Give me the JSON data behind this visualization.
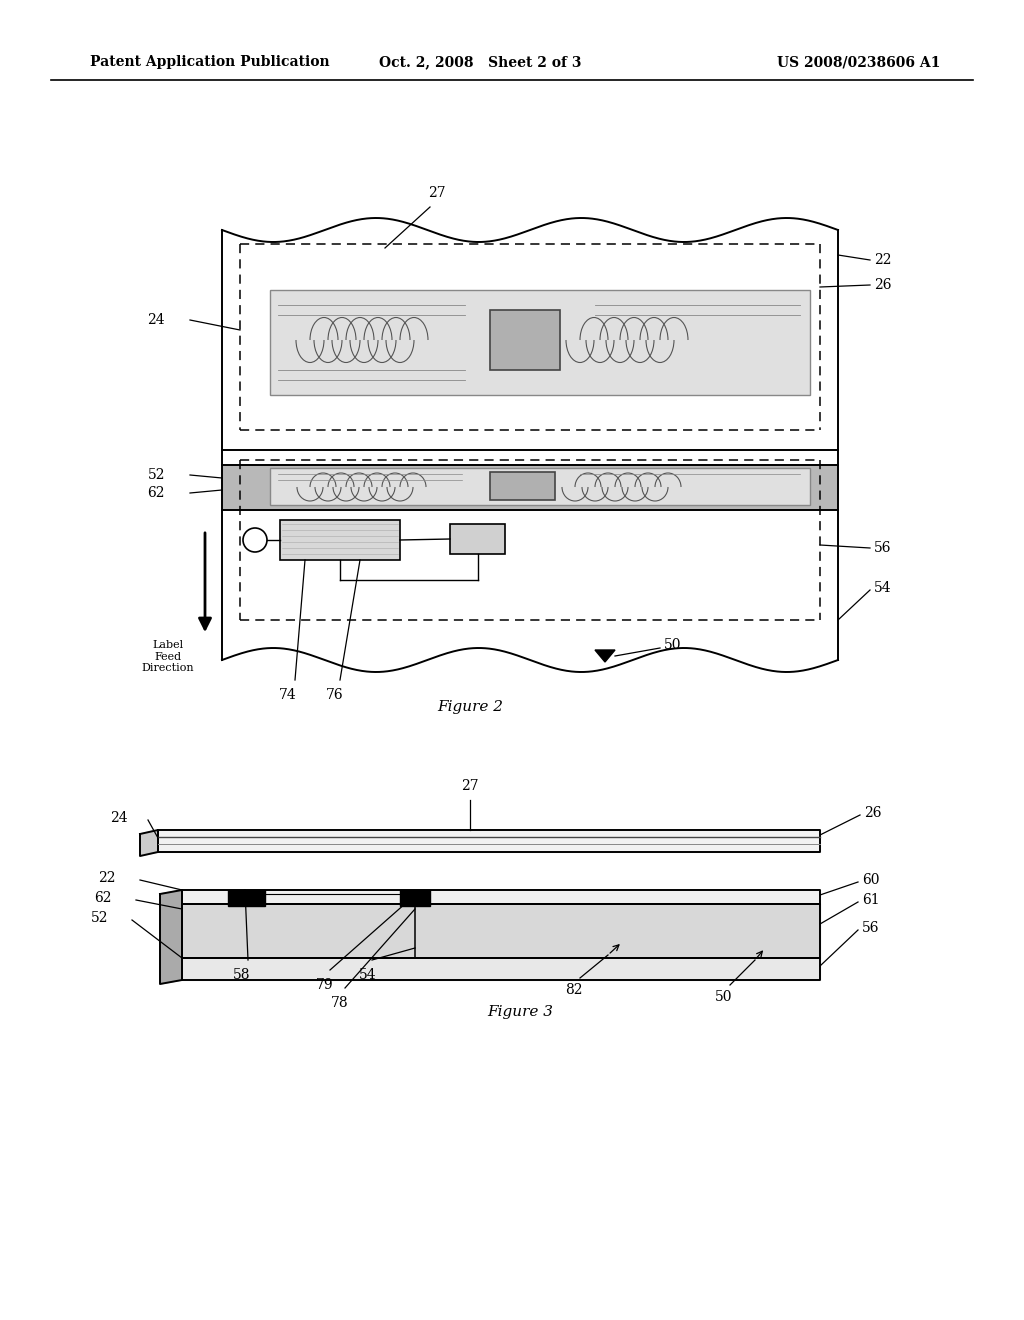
{
  "bg_color": "#ffffff",
  "header_left": "Patent Application Publication",
  "header_mid": "Oct. 2, 2008   Sheet 2 of 3",
  "header_right": "US 2008/0238606 A1",
  "fig2_caption": "Figure 2",
  "fig3_caption": "Figure 3",
  "lw_main": 1.4,
  "lw_thin": 0.9,
  "fs_label": 10,
  "fs_caption": 11,
  "fs_lfd": 8
}
